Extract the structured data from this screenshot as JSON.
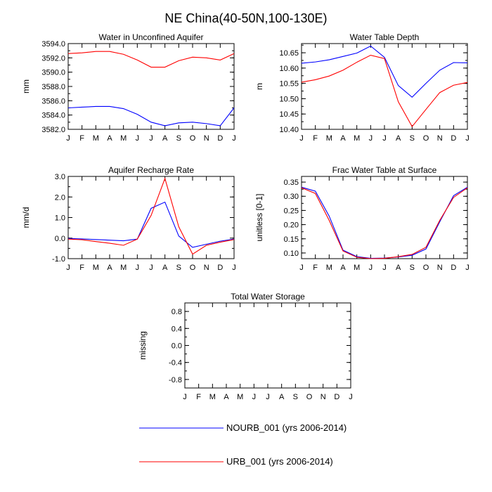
{
  "figure": {
    "title": "NE China(40-50N,100-130E)"
  },
  "colors": {
    "nourb": "#0000ff",
    "urb": "#ff0000",
    "axis": "#000000"
  },
  "months": [
    "J",
    "F",
    "M",
    "A",
    "M",
    "J",
    "J",
    "A",
    "S",
    "O",
    "N",
    "D",
    "J"
  ],
  "legend": [
    {
      "name": "NOURB_001",
      "label": "NOURB_001 (yrs 2006-2014)",
      "color": "#0000ff"
    },
    {
      "name": "URB_001",
      "label": "URB_001 (yrs 2006-2014)",
      "color": "#ff0000"
    }
  ],
  "chart_data": [
    {
      "type": "line",
      "title": "Water in Unconfined Aquifer",
      "ylabel": "mm",
      "ylim": [
        3582.0,
        3594.0
      ],
      "yticks": [
        3582.0,
        3584.0,
        3586.0,
        3588.0,
        3590.0,
        3592.0,
        3594.0
      ],
      "ytick_labels": [
        "3582.0",
        "3584.0",
        "3586.0",
        "3588.0",
        "3590.0",
        "3592.0",
        "3594.0"
      ],
      "categories": [
        "J",
        "F",
        "M",
        "A",
        "M",
        "J",
        "J",
        "A",
        "S",
        "O",
        "N",
        "D",
        "J"
      ],
      "series": [
        {
          "name": "NOURB_001",
          "color": "#0000ff",
          "values": [
            3585.0,
            3585.1,
            3585.2,
            3585.2,
            3584.9,
            3584.1,
            3583.0,
            3582.5,
            3582.9,
            3583.0,
            3582.8,
            3582.5,
            3585.0
          ]
        },
        {
          "name": "URB_001",
          "color": "#ff0000",
          "values": [
            3592.6,
            3592.7,
            3592.9,
            3592.9,
            3592.5,
            3591.7,
            3590.7,
            3590.7,
            3591.6,
            3592.1,
            3592.0,
            3591.7,
            3592.6
          ]
        }
      ]
    },
    {
      "type": "line",
      "title": "Water Table Depth",
      "ylabel": "m",
      "ylim": [
        10.4,
        10.68
      ],
      "yticks": [
        10.4,
        10.45,
        10.5,
        10.55,
        10.6,
        10.65
      ],
      "ytick_labels": [
        "10.40",
        "10.45",
        "10.50",
        "10.55",
        "10.60",
        "10.65"
      ],
      "categories": [
        "J",
        "F",
        "M",
        "A",
        "M",
        "J",
        "J",
        "A",
        "S",
        "O",
        "N",
        "D",
        "J"
      ],
      "series": [
        {
          "name": "NOURB_001",
          "color": "#0000ff",
          "values": [
            10.616,
            10.62,
            10.627,
            10.638,
            10.649,
            10.672,
            10.635,
            10.543,
            10.505,
            10.55,
            10.593,
            10.618,
            10.617
          ]
        },
        {
          "name": "URB_001",
          "color": "#ff0000",
          "values": [
            10.554,
            10.562,
            10.574,
            10.593,
            10.619,
            10.642,
            10.631,
            10.49,
            10.409,
            10.465,
            10.52,
            10.544,
            10.553
          ]
        }
      ]
    },
    {
      "type": "line",
      "title": "Aquifer Recharge Rate",
      "ylabel": "mm/d",
      "ylim": [
        -1.0,
        3.0
      ],
      "yticks": [
        -1.0,
        0.0,
        1.0,
        2.0,
        3.0
      ],
      "ytick_labels": [
        "-1.0",
        "0.0",
        "1.0",
        "2.0",
        "3.0"
      ],
      "categories": [
        "J",
        "F",
        "M",
        "A",
        "M",
        "J",
        "J",
        "A",
        "S",
        "O",
        "N",
        "D",
        "J"
      ],
      "series": [
        {
          "name": "NOURB_001",
          "color": "#0000ff",
          "values": [
            -0.02,
            -0.04,
            -0.07,
            -0.1,
            -0.13,
            -0.05,
            1.45,
            1.75,
            0.1,
            -0.45,
            -0.3,
            -0.15,
            -0.05
          ]
        },
        {
          "name": "URB_001",
          "color": "#ff0000",
          "values": [
            -0.05,
            -0.08,
            -0.17,
            -0.25,
            -0.35,
            -0.05,
            1.1,
            2.9,
            0.55,
            -0.78,
            -0.35,
            -0.2,
            -0.07
          ]
        }
      ]
    },
    {
      "type": "line",
      "title": "Frac Water Table at Surface",
      "ylabel": "unitless [0-1]",
      "ylim": [
        0.08,
        0.37
      ],
      "yticks": [
        0.1,
        0.15,
        0.2,
        0.25,
        0.3,
        0.35
      ],
      "ytick_labels": [
        "0.10",
        "0.15",
        "0.20",
        "0.25",
        "0.30",
        "0.35"
      ],
      "categories": [
        "J",
        "F",
        "M",
        "A",
        "M",
        "J",
        "J",
        "A",
        "S",
        "O",
        "N",
        "D",
        "J"
      ],
      "series": [
        {
          "name": "NOURB_001",
          "color": "#0000ff",
          "values": [
            0.332,
            0.318,
            0.23,
            0.11,
            0.087,
            0.081,
            0.082,
            0.086,
            0.092,
            0.114,
            0.21,
            0.302,
            0.332
          ]
        },
        {
          "name": "URB_001",
          "color": "#ff0000",
          "values": [
            0.33,
            0.31,
            0.215,
            0.107,
            0.085,
            0.08,
            0.081,
            0.087,
            0.095,
            0.12,
            0.215,
            0.296,
            0.33
          ]
        }
      ]
    },
    {
      "type": "line",
      "title": "Total Water Storage",
      "ylabel": "missing",
      "ylim": [
        -1.0,
        1.0
      ],
      "yticks": [
        -0.8,
        -0.4,
        0.0,
        0.4,
        0.8
      ],
      "ytick_labels": [
        "-0.8",
        "-0.4",
        "0.0",
        "0.4",
        "0.8"
      ],
      "categories": [
        "J",
        "F",
        "M",
        "A",
        "M",
        "J",
        "J",
        "A",
        "S",
        "O",
        "N",
        "D",
        "J"
      ],
      "series": []
    }
  ]
}
